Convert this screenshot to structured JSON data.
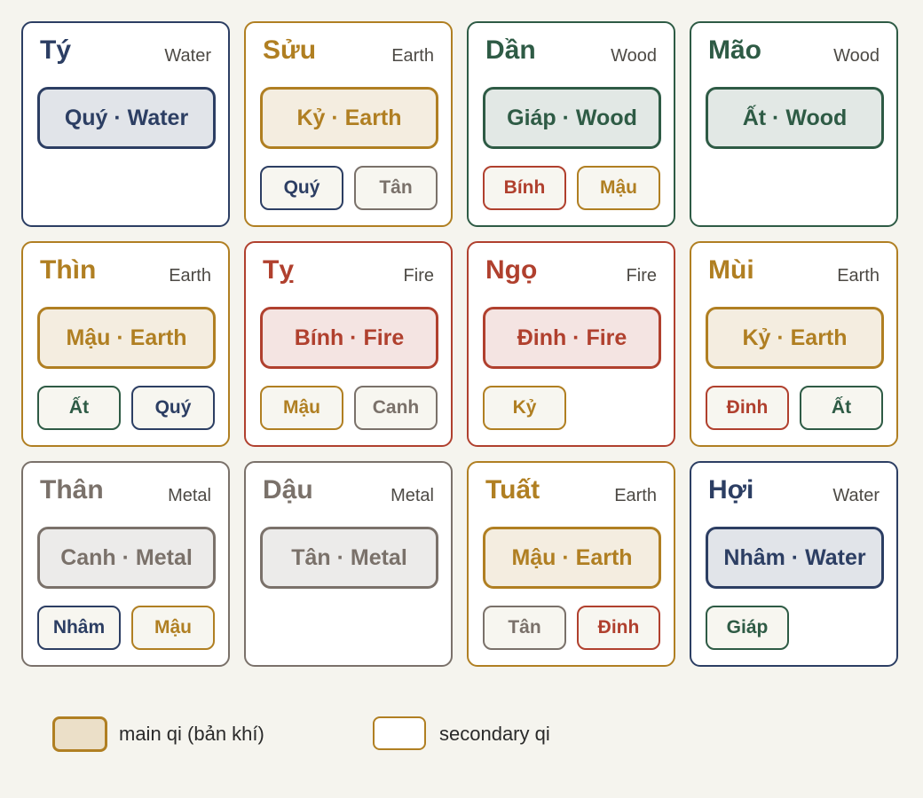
{
  "cards": [
    {
      "branch": "Tý",
      "element": "Water",
      "color": "#2c3e63",
      "main": {
        "label": "Quý · Water",
        "color": "#2c3e63"
      },
      "secondary": []
    },
    {
      "branch": "Sửu",
      "element": "Earth",
      "color": "#b07f22",
      "main": {
        "label": "Kỷ · Earth",
        "color": "#b07f22"
      },
      "secondary": [
        {
          "label": "Quý",
          "color": "#2c3e63"
        },
        {
          "label": "Tân",
          "color": "#7a716a"
        }
      ]
    },
    {
      "branch": "Dần",
      "element": "Wood",
      "color": "#2e5b45",
      "main": {
        "label": "Giáp · Wood",
        "color": "#2e5b45"
      },
      "secondary": [
        {
          "label": "Bính",
          "color": "#b0402e"
        },
        {
          "label": "Mậu",
          "color": "#b07f22"
        }
      ]
    },
    {
      "branch": "Mão",
      "element": "Wood",
      "color": "#2e5b45",
      "main": {
        "label": "Ất · Wood",
        "color": "#2e5b45"
      },
      "secondary": []
    },
    {
      "branch": "Thìn",
      "element": "Earth",
      "color": "#b07f22",
      "main": {
        "label": "Mậu · Earth",
        "color": "#b07f22"
      },
      "secondary": [
        {
          "label": "Ất",
          "color": "#2e5b45"
        },
        {
          "label": "Quý",
          "color": "#2c3e63"
        }
      ]
    },
    {
      "branch": "Tỵ",
      "element": "Fire",
      "color": "#b0402e",
      "main": {
        "label": "Bính · Fire",
        "color": "#b0402e"
      },
      "secondary": [
        {
          "label": "Mậu",
          "color": "#b07f22"
        },
        {
          "label": "Canh",
          "color": "#7a716a"
        }
      ]
    },
    {
      "branch": "Ngọ",
      "element": "Fire",
      "color": "#b0402e",
      "main": {
        "label": "Đinh · Fire",
        "color": "#b0402e"
      },
      "secondary": [
        {
          "label": "Kỷ",
          "color": "#b07f22"
        }
      ]
    },
    {
      "branch": "Mùi",
      "element": "Earth",
      "color": "#b07f22",
      "main": {
        "label": "Kỷ · Earth",
        "color": "#b07f22"
      },
      "secondary": [
        {
          "label": "Đinh",
          "color": "#b0402e"
        },
        {
          "label": "Ất",
          "color": "#2e5b45"
        }
      ]
    },
    {
      "branch": "Thân",
      "element": "Metal",
      "color": "#7a716a",
      "main": {
        "label": "Canh · Metal",
        "color": "#7a716a"
      },
      "secondary": [
        {
          "label": "Nhâm",
          "color": "#2c3e63"
        },
        {
          "label": "Mậu",
          "color": "#b07f22"
        }
      ]
    },
    {
      "branch": "Dậu",
      "element": "Metal",
      "color": "#7a716a",
      "main": {
        "label": "Tân · Metal",
        "color": "#7a716a"
      },
      "secondary": []
    },
    {
      "branch": "Tuất",
      "element": "Earth",
      "color": "#b07f22",
      "main": {
        "label": "Mậu · Earth",
        "color": "#b07f22"
      },
      "secondary": [
        {
          "label": "Tân",
          "color": "#7a716a"
        },
        {
          "label": "Đinh",
          "color": "#b0402e"
        }
      ]
    },
    {
      "branch": "Hợi",
      "element": "Water",
      "color": "#2c3e63",
      "main": {
        "label": "Nhâm · Water",
        "color": "#2c3e63"
      },
      "secondary": [
        {
          "label": "Giáp",
          "color": "#2e5b45"
        }
      ]
    }
  ],
  "legend": [
    {
      "label": "main qi (bản khí)",
      "color": "#b07f22",
      "filled": true
    },
    {
      "label": "secondary qi",
      "color": "#b07f22",
      "filled": false
    }
  ]
}
